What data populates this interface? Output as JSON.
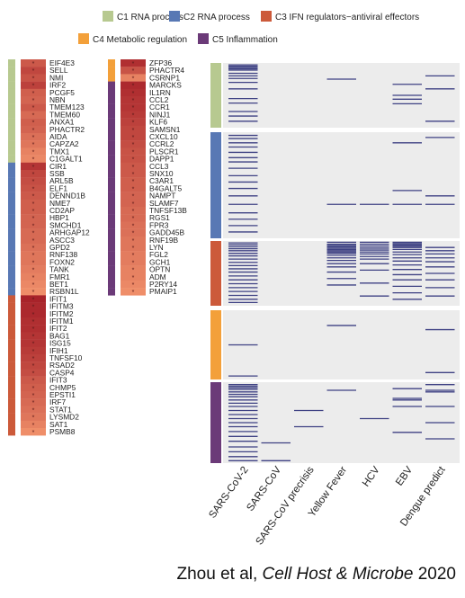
{
  "colors": {
    "C1": "#b7c990",
    "C2": "#5878b4",
    "C3": "#cc5a3a",
    "C4": "#f3a03a",
    "C5": "#6b3a78",
    "heat_dark": "#a8232a",
    "heat_light": "#f79a70",
    "panel_bg": "#ececec",
    "line": "#2b2f78"
  },
  "legend": [
    {
      "id": "C1",
      "label": "C1 RNA process"
    },
    {
      "id": "C2",
      "label": "C2 RNA process"
    },
    {
      "id": "C3",
      "label": "C3 IFN regulators−antiviral effectors"
    },
    {
      "id": "C4",
      "label": "C4 Metabolic regulation"
    },
    {
      "id": "C5",
      "label": "C5 Inflammation"
    }
  ],
  "citation": {
    "authors": "Zhou et al,",
    "journal": "Cell Host & Microbe",
    "year": "2020"
  },
  "chart_data": [
    {
      "type": "heatmap",
      "marker": "*",
      "columns": [
        {
          "genes": [
            {
              "gene": "EIF4E3",
              "cluster": "C1",
              "value": 0.55
            },
            {
              "gene": "SELL",
              "cluster": "C1",
              "value": 0.7
            },
            {
              "gene": "NMI",
              "cluster": "C1",
              "value": 0.6
            },
            {
              "gene": "IRF2",
              "cluster": "C1",
              "value": 0.75
            },
            {
              "gene": "PCGF5",
              "cluster": "C1",
              "value": 0.5
            },
            {
              "gene": "NBN",
              "cluster": "C1",
              "value": 0.45
            },
            {
              "gene": "TMEM123",
              "cluster": "C1",
              "value": 0.55
            },
            {
              "gene": "TMEM60",
              "cluster": "C1",
              "value": 0.4
            },
            {
              "gene": "ANXA1",
              "cluster": "C1",
              "value": 0.5
            },
            {
              "gene": "PHACTR2",
              "cluster": "C1",
              "value": 0.45
            },
            {
              "gene": "AIDA",
              "cluster": "C1",
              "value": 0.35
            },
            {
              "gene": "CAPZA2",
              "cluster": "C1",
              "value": 0.3
            },
            {
              "gene": "TMX1",
              "cluster": "C1",
              "value": 0.2
            },
            {
              "gene": "C1GALT1",
              "cluster": "C1",
              "value": 0.15
            },
            {
              "gene": "CIR1",
              "cluster": "C2",
              "value": 0.85
            },
            {
              "gene": "SSB",
              "cluster": "C2",
              "value": 0.7
            },
            {
              "gene": "ARL5B",
              "cluster": "C2",
              "value": 0.65
            },
            {
              "gene": "ELF1",
              "cluster": "C2",
              "value": 0.6
            },
            {
              "gene": "DENND1B",
              "cluster": "C2",
              "value": 0.55
            },
            {
              "gene": "NME7",
              "cluster": "C2",
              "value": 0.5
            },
            {
              "gene": "CD2AP",
              "cluster": "C2",
              "value": 0.5
            },
            {
              "gene": "HBP1",
              "cluster": "C2",
              "value": 0.45
            },
            {
              "gene": "SMCHD1",
              "cluster": "C2",
              "value": 0.45
            },
            {
              "gene": "ARHGAP12",
              "cluster": "C2",
              "value": 0.4
            },
            {
              "gene": "ASCC3",
              "cluster": "C2",
              "value": 0.4
            },
            {
              "gene": "GPD2",
              "cluster": "C2",
              "value": 0.35
            },
            {
              "gene": "RNF138",
              "cluster": "C2",
              "value": 0.3
            },
            {
              "gene": "FOXN2",
              "cluster": "C2",
              "value": 0.3
            },
            {
              "gene": "TANK",
              "cluster": "C2",
              "value": 0.25
            },
            {
              "gene": "FMR1",
              "cluster": "C2",
              "value": 0.2
            },
            {
              "gene": "BET1",
              "cluster": "C2",
              "value": 0.15
            },
            {
              "gene": "RSBN1L",
              "cluster": "C2",
              "value": 0.1
            },
            {
              "gene": "IFIT1",
              "cluster": "C3",
              "value": 1.0
            },
            {
              "gene": "IFITM3",
              "cluster": "C3",
              "value": 0.95
            },
            {
              "gene": "IFITM2",
              "cluster": "C3",
              "value": 0.95
            },
            {
              "gene": "IFITM1",
              "cluster": "C3",
              "value": 0.9
            },
            {
              "gene": "IFIT2",
              "cluster": "C3",
              "value": 0.9
            },
            {
              "gene": "BAG1",
              "cluster": "C3",
              "value": 0.85
            },
            {
              "gene": "ISG15",
              "cluster": "C3",
              "value": 0.85
            },
            {
              "gene": "IFIH1",
              "cluster": "C3",
              "value": 0.8
            },
            {
              "gene": "TNFSF10",
              "cluster": "C3",
              "value": 0.75
            },
            {
              "gene": "RSAD2",
              "cluster": "C3",
              "value": 0.7
            },
            {
              "gene": "CASP4",
              "cluster": "C3",
              "value": 0.65
            },
            {
              "gene": "IFIT3",
              "cluster": "C3",
              "value": 0.55
            },
            {
              "gene": "CHMP5",
              "cluster": "C3",
              "value": 0.5
            },
            {
              "gene": "EPSTI1",
              "cluster": "C3",
              "value": 0.45
            },
            {
              "gene": "IRF7",
              "cluster": "C3",
              "value": 0.4
            },
            {
              "gene": "STAT1",
              "cluster": "C3",
              "value": 0.35
            },
            {
              "gene": "LYSMD2",
              "cluster": "C3",
              "value": 0.3
            },
            {
              "gene": "SAT1",
              "cluster": "C3",
              "value": 0.2
            },
            {
              "gene": "PSMB8",
              "cluster": "C3",
              "value": 0.1
            }
          ]
        },
        {
          "genes": [
            {
              "gene": "ZFP36",
              "cluster": "C4",
              "value": 0.9
            },
            {
              "gene": "PHACTR4",
              "cluster": "C4",
              "value": 0.6
            },
            {
              "gene": "CSRNP1",
              "cluster": "C4",
              "value": 0.2
            },
            {
              "gene": "MARCKS",
              "cluster": "C5",
              "value": 0.95
            },
            {
              "gene": "IL1RN",
              "cluster": "C5",
              "value": 0.9
            },
            {
              "gene": "CCL2",
              "cluster": "C5",
              "value": 0.85
            },
            {
              "gene": "CCR1",
              "cluster": "C5",
              "value": 0.85
            },
            {
              "gene": "NINJ1",
              "cluster": "C5",
              "value": 0.8
            },
            {
              "gene": "KLF6",
              "cluster": "C5",
              "value": 0.75
            },
            {
              "gene": "SAMSN1",
              "cluster": "C5",
              "value": 0.7
            },
            {
              "gene": "CXCL10",
              "cluster": "C5",
              "value": 0.7
            },
            {
              "gene": "CCRL2",
              "cluster": "C5",
              "value": 0.65
            },
            {
              "gene": "PLSCR1",
              "cluster": "C5",
              "value": 0.6
            },
            {
              "gene": "DAPP1",
              "cluster": "C5",
              "value": 0.6
            },
            {
              "gene": "CCL3",
              "cluster": "C5",
              "value": 0.55
            },
            {
              "gene": "SNX10",
              "cluster": "C5",
              "value": 0.55
            },
            {
              "gene": "C3AR1",
              "cluster": "C5",
              "value": 0.5
            },
            {
              "gene": "B4GALT5",
              "cluster": "C5",
              "value": 0.5
            },
            {
              "gene": "NAMPT",
              "cluster": "C5",
              "value": 0.45
            },
            {
              "gene": "SLAMF7",
              "cluster": "C5",
              "value": 0.45
            },
            {
              "gene": "TNFSF13B",
              "cluster": "C5",
              "value": 0.4
            },
            {
              "gene": "RGS1",
              "cluster": "C5",
              "value": 0.4
            },
            {
              "gene": "FPR3",
              "cluster": "C5",
              "value": 0.35
            },
            {
              "gene": "GADD45B",
              "cluster": "C5",
              "value": 0.35
            },
            {
              "gene": "RNF19B",
              "cluster": "C5",
              "value": 0.3
            },
            {
              "gene": "LYN",
              "cluster": "C5",
              "value": 0.3
            },
            {
              "gene": "FGL2",
              "cluster": "C5",
              "value": 0.25
            },
            {
              "gene": "GCH1",
              "cluster": "C5",
              "value": 0.25
            },
            {
              "gene": "OPTN",
              "cluster": "C5",
              "value": 0.2
            },
            {
              "gene": "ADM",
              "cluster": "C5",
              "value": 0.2
            },
            {
              "gene": "P2RY14",
              "cluster": "C5",
              "value": 0.15
            },
            {
              "gene": "PMAIP1",
              "cluster": "C5",
              "value": 0.1
            }
          ]
        }
      ]
    },
    {
      "type": "heatmap",
      "categories": [
        "SARS-CoV-2",
        "SARS-CoV",
        "SARS-CoV precrisis",
        "Yellow Fever",
        "HCV",
        "EBV",
        "Dengue predict"
      ],
      "clusters": [
        {
          "id": "C1",
          "hits": [
            [
              0.03,
              0.05,
              0.07,
              0.09,
              0.11,
              0.16,
              0.2,
              0.24,
              0.3,
              0.4,
              0.55,
              0.62,
              0.75,
              0.82,
              0.9
            ],
            [],
            [],
            [
              0.25
            ],
            [],
            [
              0.33,
              0.5,
              0.56,
              0.63
            ],
            [
              0.2,
              0.4,
              0.9
            ]
          ]
        },
        {
          "id": "C2",
          "hits": [
            [
              0.03,
              0.06,
              0.1,
              0.14,
              0.19,
              0.24,
              0.28,
              0.34,
              0.41,
              0.47,
              0.53,
              0.6,
              0.68,
              0.76,
              0.82,
              0.88,
              0.94
            ],
            [],
            [],
            [
              0.68
            ],
            [
              0.68
            ],
            [
              0.1,
              0.55,
              0.68
            ],
            [
              0.05,
              0.6,
              0.68
            ]
          ]
        },
        {
          "id": "C3",
          "hits": [
            [
              0.03,
              0.06,
              0.09,
              0.12,
              0.15,
              0.19,
              0.23,
              0.28,
              0.33,
              0.38,
              0.43,
              0.48,
              0.54,
              0.6,
              0.66,
              0.72,
              0.78,
              0.84,
              0.9,
              0.95
            ],
            [],
            [],
            [
              0.02,
              0.05,
              0.07,
              0.09,
              0.11,
              0.13,
              0.15,
              0.17,
              0.19,
              0.22,
              0.26,
              0.3,
              0.35,
              0.4,
              0.48,
              0.58,
              0.68
            ],
            [
              0.02,
              0.05,
              0.08,
              0.11,
              0.14,
              0.17,
              0.2,
              0.24,
              0.28,
              0.35,
              0.45,
              0.65,
              0.85
            ],
            [
              0.02,
              0.04,
              0.06,
              0.08,
              0.1,
              0.13,
              0.17,
              0.21,
              0.26,
              0.31,
              0.37,
              0.44,
              0.52,
              0.6,
              0.7,
              0.8,
              0.9
            ],
            [
              0.1,
              0.15,
              0.2,
              0.26,
              0.32,
              0.4,
              0.5,
              0.6,
              0.72,
              0.85
            ]
          ]
        },
        {
          "id": "C4",
          "hits": [
            [
              0.5,
              0.95
            ],
            [],
            [],
            [
              0.22
            ],
            [],
            [],
            [
              0.28,
              0.9
            ]
          ]
        },
        {
          "id": "C5",
          "hits": [
            [
              0.03,
              0.05,
              0.07,
              0.09,
              0.12,
              0.15,
              0.18,
              0.22,
              0.26,
              0.3,
              0.35,
              0.4,
              0.45,
              0.5,
              0.55,
              0.61,
              0.67,
              0.73,
              0.8,
              0.86,
              0.92,
              0.97
            ],
            [
              0.75,
              0.97
            ],
            [
              0.35,
              0.55
            ],
            [
              0.1
            ],
            [
              0.45
            ],
            [
              0.08,
              0.2,
              0.22,
              0.3,
              0.62
            ],
            [
              0.03,
              0.1,
              0.12,
              0.3,
              0.5,
              0.7
            ]
          ]
        }
      ]
    }
  ]
}
